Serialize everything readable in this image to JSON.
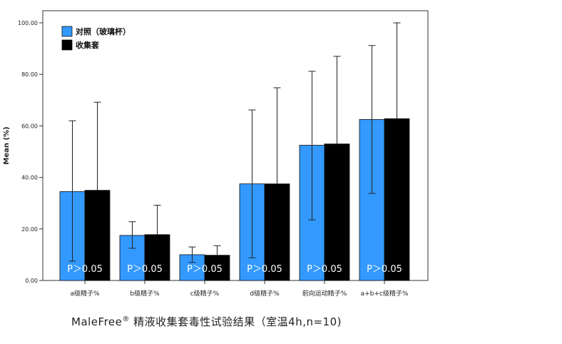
{
  "chart_data": {
    "type": "bar",
    "ylabel": "Mean (%)",
    "ylim": [
      0,
      100
    ],
    "yticks": [
      "0.00",
      "20.00",
      "40.00",
      "60.00",
      "80.00",
      "100.00"
    ],
    "categories": [
      "a级精子%",
      "b级精子%",
      "c级精子%",
      "d级精子%",
      "前向运动精子%",
      "a+b+c级精子%"
    ],
    "series": [
      {
        "name": "对照（玻璃杯）",
        "color": "#3399ff",
        "values": [
          34.5,
          17.5,
          10.0,
          37.5,
          52.5,
          62.5
        ],
        "error_low": [
          7.5,
          12.5,
          7.0,
          8.8,
          23.5,
          33.8
        ],
        "error_high": [
          62.0,
          22.8,
          13.0,
          66.2,
          81.2,
          91.2
        ]
      },
      {
        "name": "收集套",
        "color": "#000000",
        "values": [
          35.0,
          17.8,
          9.8,
          37.5,
          53.0,
          62.8
        ],
        "error_low": [
          0,
          0,
          0,
          0,
          0,
          0
        ],
        "error_high": [
          69.2,
          29.2,
          13.5,
          74.8,
          87.0,
          100.0
        ]
      }
    ],
    "annotations": [
      "P＞0.05",
      "P＞0.05",
      "P＞0.05",
      "P＞0.05",
      "P＞0.05",
      "P＞0.05"
    ],
    "legend_position": "top-left",
    "grid": false
  },
  "caption": {
    "brand": "MaleFree",
    "mark": "®",
    "text": " 精液收集套毒性试验结果（室温4h,n=10)"
  }
}
